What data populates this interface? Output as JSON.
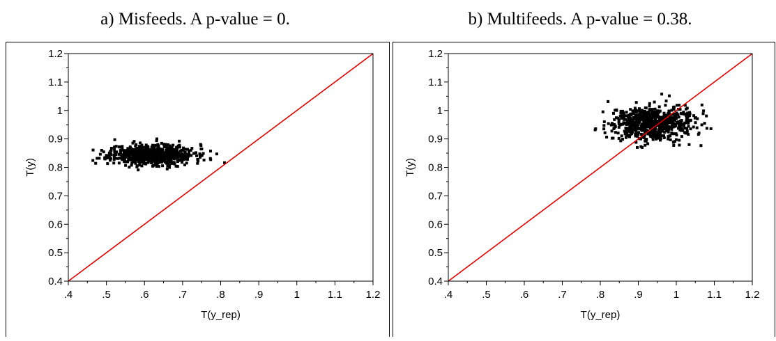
{
  "captions": {
    "a": "a) Misfeeds. A p-value = 0.",
    "b": "b) Multifeeds. A p-value = 0.38."
  },
  "colors": {
    "points": "#000000",
    "reference_line": "#e00000",
    "axes": "#000000"
  },
  "chart_data": [
    {
      "type": "scatter",
      "title": "a) Misfeeds. A p-value = 0.",
      "xlabel": "T(y_rep)",
      "ylabel": "T(y)",
      "xlim": [
        0.4,
        1.2
      ],
      "ylim": [
        0.4,
        1.2
      ],
      "xticks": [
        ".4",
        ".5",
        ".6",
        ".7",
        ".8",
        ".9",
        "1",
        "1.1",
        "1.2"
      ],
      "yticks": [
        "0.4",
        "0.5",
        "0.6",
        "0.7",
        "0.8",
        "0.9",
        "1",
        "1.1",
        "1.2"
      ],
      "reference_line": [
        [
          0.4,
          0.4
        ],
        [
          1.2,
          1.2
        ]
      ],
      "cloud": {
        "x_center": 0.62,
        "x_sd": 0.055,
        "x_range": [
          0.45,
          0.81
        ],
        "y_center": 0.845,
        "y_sd": 0.018,
        "y_range": [
          0.79,
          0.9
        ],
        "n": 700
      },
      "grid": false
    },
    {
      "type": "scatter",
      "title": "b) Multifeeds. A p-value = 0.38.",
      "xlabel": "T(y_rep)",
      "ylabel": "T(y)",
      "xlim": [
        0.4,
        1.2
      ],
      "ylim": [
        0.4,
        1.2
      ],
      "xticks": [
        ".4",
        ".5",
        ".6",
        ".7",
        ".8",
        ".9",
        "1",
        "1.1",
        "1.2"
      ],
      "yticks": [
        "0.4",
        "0.5",
        "0.6",
        "0.7",
        "0.8",
        "0.9",
        "1",
        "1.1",
        "1.2"
      ],
      "reference_line": [
        [
          0.4,
          0.4
        ],
        [
          1.2,
          1.2
        ]
      ],
      "cloud": {
        "x_center": 0.935,
        "x_sd": 0.055,
        "x_range": [
          0.76,
          1.11
        ],
        "y_center": 0.955,
        "y_sd": 0.03,
        "y_range": [
          0.87,
          1.08
        ],
        "n": 700
      },
      "grid": false
    }
  ]
}
